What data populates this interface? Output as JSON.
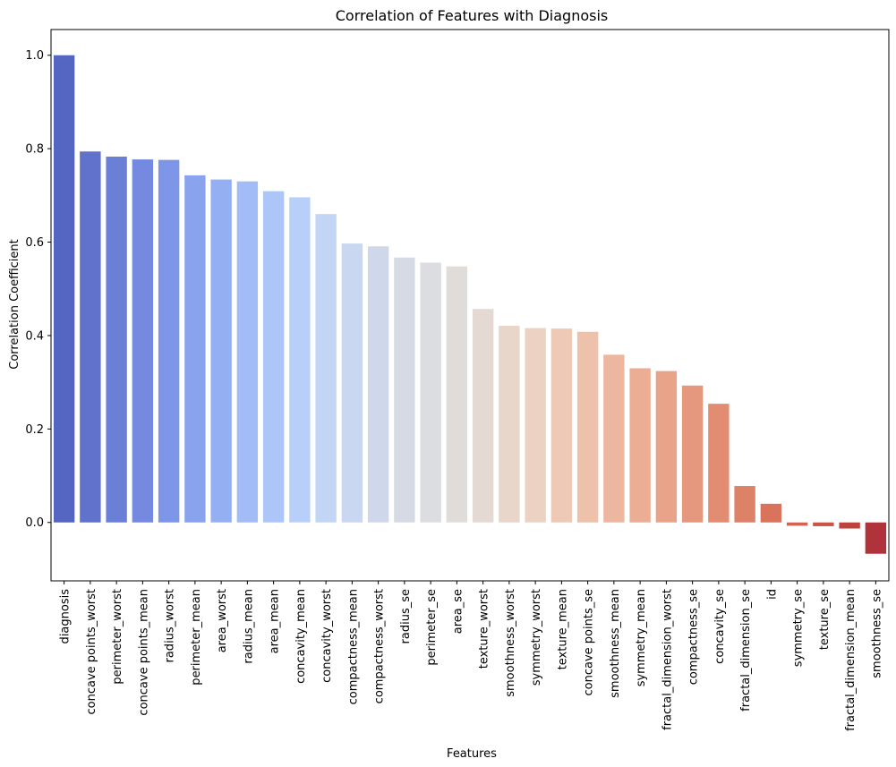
{
  "chart_data": {
    "type": "bar",
    "title": "Correlation of Features with Diagnosis",
    "xlabel": "Features",
    "ylabel": "Correlation Coefficient",
    "ylim": [
      -0.125,
      1.055
    ],
    "yticks": [
      "0.0",
      "0.2",
      "0.4",
      "0.6",
      "0.8",
      "1.0"
    ],
    "ytick_values": [
      0.0,
      0.2,
      0.4,
      0.6,
      0.8,
      1.0
    ],
    "grid": false,
    "colormap": "coolwarm",
    "categories": [
      "diagnosis",
      "concave points_worst",
      "perimeter_worst",
      "concave points_mean",
      "radius_worst",
      "perimeter_mean",
      "area_worst",
      "radius_mean",
      "area_mean",
      "concavity_mean",
      "concavity_worst",
      "compactness_mean",
      "compactness_worst",
      "radius_se",
      "perimeter_se",
      "area_se",
      "texture_worst",
      "smoothness_worst",
      "symmetry_worst",
      "texture_mean",
      "concave points_se",
      "smoothness_mean",
      "symmetry_mean",
      "fractal_dimension_worst",
      "compactness_se",
      "concavity_se",
      "fractal_dimension_se",
      "id",
      "symmetry_se",
      "texture_se",
      "fractal_dimension_mean",
      "smoothness_se"
    ],
    "values": [
      1.0,
      0.794,
      0.783,
      0.777,
      0.776,
      0.743,
      0.734,
      0.73,
      0.709,
      0.696,
      0.66,
      0.597,
      0.591,
      0.567,
      0.556,
      0.548,
      0.457,
      0.421,
      0.416,
      0.415,
      0.408,
      0.359,
      0.33,
      0.324,
      0.293,
      0.254,
      0.078,
      0.04,
      -0.007,
      -0.008,
      -0.013,
      -0.067
    ],
    "colors": [
      "#5466c2",
      "#6072cc",
      "#6a7fd6",
      "#7489df",
      "#7e96e7",
      "#8aa3ee",
      "#95b0f2",
      "#a1bcf6",
      "#adc6f8",
      "#b8cffa",
      "#c3d5f5",
      "#c9d8f0",
      "#cfd8ea",
      "#d5dae5",
      "#dcdde1",
      "#e0dcda",
      "#e5d9d4",
      "#e9d6cb",
      "#ecd2c2",
      "#eecab6",
      "#eec1aa",
      "#edb79f",
      "#ebad93",
      "#e8a388",
      "#e5987d",
      "#e28d72",
      "#de8267",
      "#d9735c",
      "#d26451",
      "#c95446",
      "#be433e",
      "#b0323a"
    ]
  }
}
